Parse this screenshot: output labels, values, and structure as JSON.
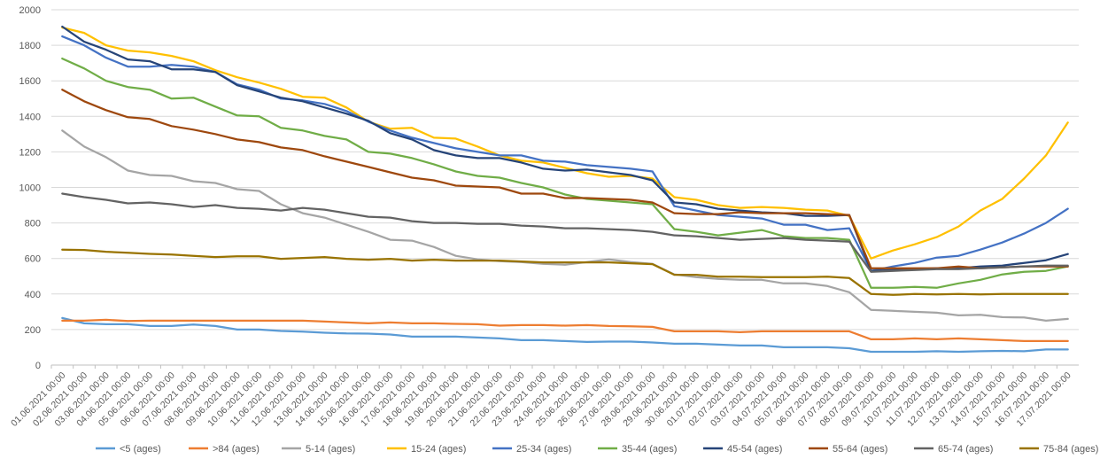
{
  "chart_data": {
    "type": "line",
    "ylim": [
      0,
      2000
    ],
    "y_ticks": [
      "0",
      "200",
      "400",
      "600",
      "800",
      "1000",
      "1200",
      "1400",
      "1600",
      "1800",
      "2000"
    ],
    "grid": "horizontal",
    "legend_position": "bottom",
    "x": [
      "01.06.2021 00:00",
      "02.06.2021 00:00",
      "03.06.2021 00:00",
      "04.06.2021 00:00",
      "05.06.2021 00:00",
      "06.06.2021 00:00",
      "07.06.2021 00:00",
      "08.06.2021 00:00",
      "09.06.2021 00:00",
      "10.06.2021 00:00",
      "11.06.2021 00:00",
      "12.06.2021 00:00",
      "13.06.2021 00:00",
      "14.06.2021 00:00",
      "15.06.2021 00:00",
      "16.06.2021 00:00",
      "17.06.2021 00:00",
      "18.06.2021 00:00",
      "19.06.2021 00:00",
      "20.06.2021 00:00",
      "21.06.2021 00:00",
      "22.06.2021 00:00",
      "23.06.2021 00:00",
      "24.06.2021 00:00",
      "25.06.2021 00:00",
      "26.06.2021 00:00",
      "27.06.2021 00:00",
      "28.06.2021 00:00",
      "29.06.2021 00:00",
      "30.06.2021 00:00",
      "01.07.2021 00:00",
      "02.07.2021 00:00",
      "03.07.2021 00:00",
      "04.07.2021 00:00",
      "05.07.2021 00:00",
      "06.07.2021 00:00",
      "07.07.2021 00:00",
      "08.07.2021 00:00",
      "09.07.2021 00:00",
      "10.07.2021 00:00",
      "11.07.2021 00:00",
      "12.07.2021 00:00",
      "13.07.2021 00:00",
      "14.07.2021 00:00",
      "15.07.2021 00:00",
      "16.07.2021 00:00",
      "17.07.2021 00:00"
    ],
    "series": [
      {
        "name": "<5 (ages)",
        "color": "#5B9BD5",
        "values": [
          265,
          235,
          230,
          230,
          220,
          220,
          228,
          220,
          200,
          200,
          192,
          188,
          182,
          178,
          177,
          172,
          160,
          160,
          160,
          155,
          150,
          140,
          140,
          135,
          130,
          132,
          132,
          127,
          120,
          120,
          115,
          110,
          110,
          100,
          100,
          100,
          95,
          75,
          75,
          75,
          78,
          75,
          78,
          80,
          78,
          88,
          88
        ]
      },
      {
        "name": ">84 (ages)",
        "color": "#ED7D31",
        "values": [
          250,
          250,
          255,
          248,
          250,
          250,
          250,
          250,
          250,
          250,
          250,
          250,
          245,
          240,
          235,
          240,
          235,
          235,
          232,
          230,
          222,
          225,
          225,
          222,
          225,
          220,
          218,
          215,
          190,
          190,
          190,
          185,
          190,
          190,
          190,
          190,
          190,
          145,
          145,
          150,
          145,
          150,
          145,
          140,
          135,
          135,
          135
        ]
      },
      {
        "name": "5-14 (ages)",
        "color": "#A5A5A5",
        "values": [
          1320,
          1230,
          1170,
          1095,
          1070,
          1065,
          1035,
          1025,
          990,
          980,
          905,
          855,
          830,
          790,
          750,
          705,
          700,
          665,
          615,
          595,
          585,
          580,
          570,
          565,
          580,
          595,
          580,
          570,
          510,
          495,
          485,
          480,
          480,
          460,
          460,
          445,
          410,
          310,
          305,
          300,
          295,
          280,
          283,
          270,
          268,
          250,
          260
        ]
      },
      {
        "name": "15-24 (ages)",
        "color": "#FFC000",
        "values": [
          1900,
          1870,
          1800,
          1770,
          1760,
          1740,
          1710,
          1660,
          1620,
          1590,
          1555,
          1510,
          1505,
          1450,
          1370,
          1330,
          1335,
          1280,
          1275,
          1230,
          1180,
          1150,
          1140,
          1110,
          1080,
          1060,
          1065,
          1050,
          945,
          930,
          900,
          885,
          890,
          885,
          875,
          870,
          840,
          600,
          645,
          680,
          720,
          780,
          870,
          935,
          1050,
          1180,
          1365
        ]
      },
      {
        "name": "25-34 (ages)",
        "color": "#4472C4",
        "values": [
          1850,
          1800,
          1730,
          1680,
          1680,
          1690,
          1680,
          1650,
          1580,
          1550,
          1500,
          1490,
          1470,
          1430,
          1370,
          1320,
          1280,
          1250,
          1220,
          1200,
          1180,
          1180,
          1150,
          1145,
          1125,
          1115,
          1105,
          1090,
          895,
          870,
          845,
          835,
          825,
          790,
          790,
          760,
          770,
          530,
          555,
          575,
          605,
          615,
          650,
          690,
          740,
          800,
          880
        ]
      },
      {
        "name": "35-44 (ages)",
        "color": "#70AD47",
        "values": [
          1725,
          1670,
          1600,
          1565,
          1550,
          1500,
          1505,
          1455,
          1405,
          1400,
          1335,
          1320,
          1290,
          1270,
          1200,
          1190,
          1165,
          1130,
          1090,
          1065,
          1055,
          1025,
          1000,
          960,
          935,
          925,
          915,
          905,
          765,
          750,
          730,
          745,
          760,
          725,
          715,
          715,
          705,
          435,
          435,
          440,
          435,
          460,
          480,
          510,
          525,
          530,
          555
        ]
      },
      {
        "name": "45-54 (ages)",
        "color": "#264478",
        "values": [
          1905,
          1820,
          1775,
          1720,
          1710,
          1665,
          1665,
          1650,
          1575,
          1540,
          1505,
          1485,
          1450,
          1415,
          1375,
          1305,
          1270,
          1210,
          1180,
          1165,
          1165,
          1140,
          1105,
          1095,
          1100,
          1085,
          1070,
          1040,
          915,
          905,
          880,
          870,
          860,
          855,
          840,
          840,
          845,
          530,
          535,
          540,
          545,
          545,
          555,
          560,
          575,
          590,
          625
        ]
      },
      {
        "name": "55-64 (ages)",
        "color": "#9E480E",
        "values": [
          1550,
          1485,
          1435,
          1395,
          1385,
          1345,
          1325,
          1300,
          1270,
          1255,
          1225,
          1210,
          1175,
          1145,
          1115,
          1085,
          1055,
          1040,
          1010,
          1005,
          1000,
          965,
          965,
          940,
          940,
          935,
          930,
          915,
          855,
          850,
          850,
          860,
          855,
          855,
          855,
          850,
          845,
          545,
          545,
          545,
          545,
          555,
          545,
          550,
          555,
          555,
          555
        ]
      },
      {
        "name": "65-74 (ages)",
        "color": "#636363",
        "values": [
          965,
          945,
          930,
          910,
          915,
          905,
          890,
          900,
          885,
          880,
          870,
          885,
          875,
          855,
          835,
          830,
          810,
          800,
          800,
          795,
          795,
          785,
          780,
          770,
          770,
          765,
          760,
          750,
          730,
          725,
          715,
          705,
          710,
          715,
          705,
          700,
          695,
          525,
          530,
          535,
          540,
          540,
          545,
          550,
          555,
          560,
          560
        ]
      },
      {
        "name": "75-84 (ages)",
        "color": "#997300",
        "values": [
          650,
          648,
          638,
          632,
          626,
          622,
          615,
          608,
          612,
          612,
          598,
          603,
          608,
          598,
          593,
          598,
          588,
          593,
          588,
          588,
          588,
          583,
          578,
          578,
          578,
          578,
          573,
          568,
          508,
          508,
          498,
          498,
          495,
          495,
          495,
          498,
          490,
          400,
          395,
          400,
          398,
          400,
          398,
          400,
          400,
          400,
          400
        ]
      }
    ]
  }
}
